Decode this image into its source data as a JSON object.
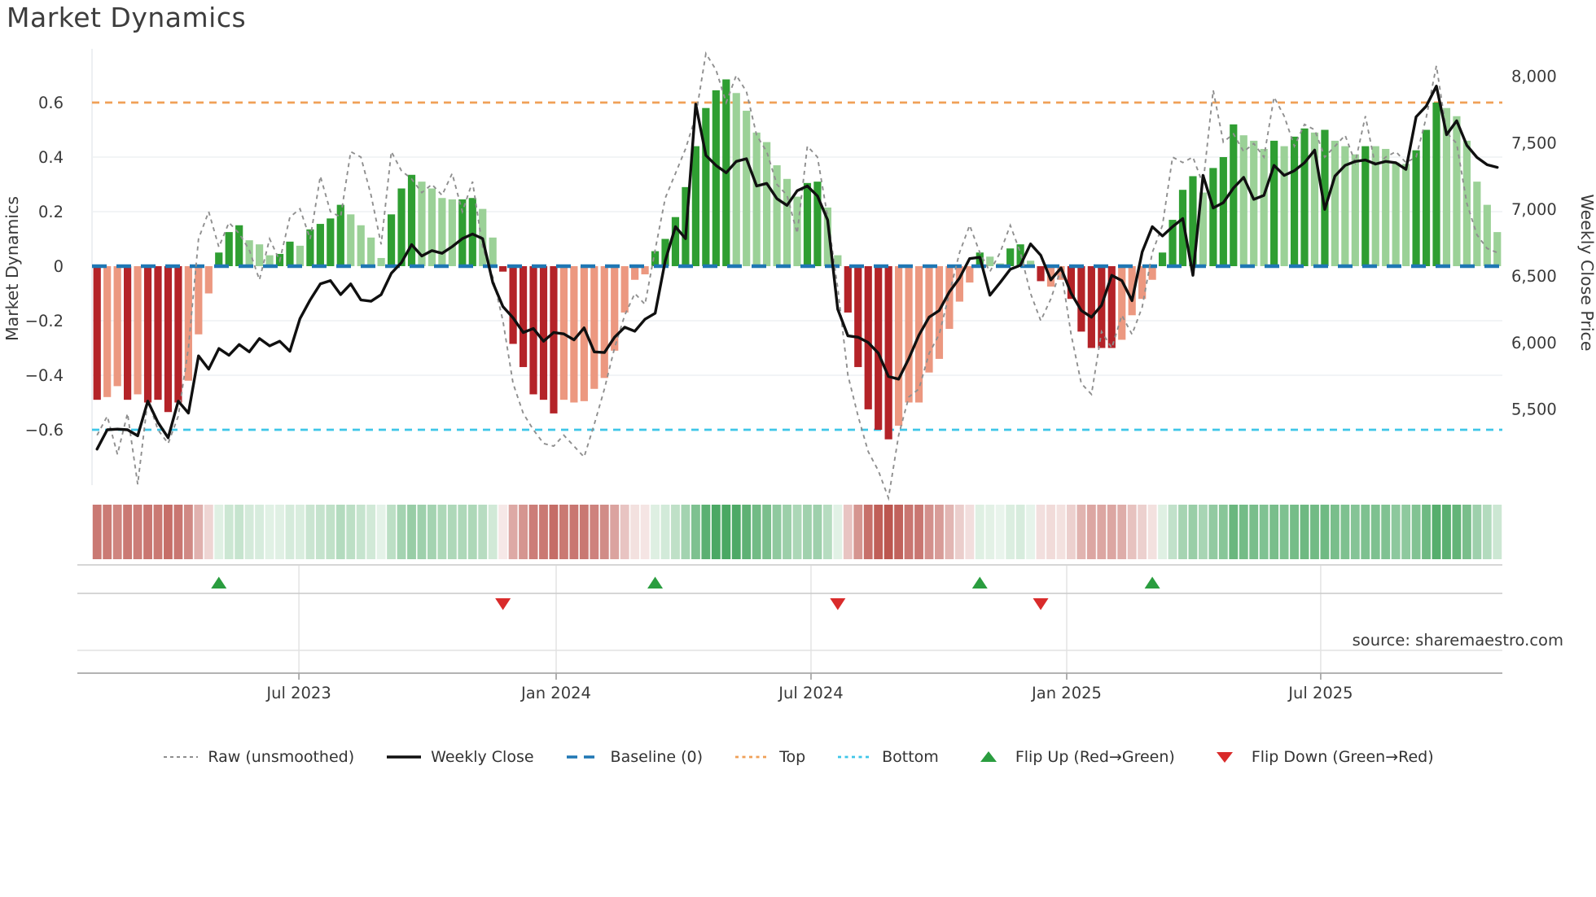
{
  "title": "Market Dynamics",
  "source_note": "source: sharemaestro.com",
  "axes": {
    "left_title": "Market Dynamics",
    "right_title": "Weekly Close Price",
    "left_ticks": {
      "labels": [
        "0.6",
        "0.4",
        "0.2",
        "0",
        "−0.2",
        "−0.4",
        "−0.6"
      ],
      "values": [
        0.6,
        0.4,
        0.2,
        0,
        -0.2,
        -0.4,
        -0.6
      ]
    },
    "right_ticks": {
      "labels": [
        "8,000",
        "7,500",
        "7,000",
        "6,500",
        "6,000",
        "5,500"
      ],
      "values": [
        8000,
        7500,
        7000,
        6500,
        6000,
        5500
      ]
    },
    "x_ticks": {
      "labels": [
        "Jul 2023",
        "Jan 2024",
        "Jul 2024",
        "Jan 2025",
        "Jul 2025"
      ],
      "fractions": [
        0.1467,
        0.3291,
        0.5098,
        0.6911,
        0.8712
      ]
    }
  },
  "legend": [
    {
      "id": "raw",
      "label": "Raw (unsmoothed)"
    },
    {
      "id": "close",
      "label": "Weekly Close"
    },
    {
      "id": "baseline",
      "label": "Baseline (0)"
    },
    {
      "id": "top",
      "label": "Top"
    },
    {
      "id": "bottom",
      "label": "Bottom"
    },
    {
      "id": "flip-up",
      "label": "Flip Up (Red→Green)"
    },
    {
      "id": "flip-down",
      "label": "Flip Down (Green→Red)"
    }
  ],
  "colors": {
    "bar_strong_red": "#b42328",
    "bar_muted_red": "#ec9880",
    "bar_strong_green": "#2f9e32",
    "bar_muted_green": "#9bd197",
    "raw_line": "#8f8f8f",
    "close_line": "#101010",
    "baseline": "#1f77b4",
    "top_line": "#f0a057",
    "bottom_line": "#3fc6e8",
    "flip_up": "#2a9d3f",
    "flip_down": "#d92b2b",
    "heat_red": "#b5443c",
    "heat_green": "#3aa055",
    "grid": "#edf0f3",
    "panel_line": "#c9c9c9",
    "panel_line_light": "#e2e2e2",
    "panel_axis": "#a8a8a8"
  },
  "chart_data": {
    "type": "bar",
    "description": "Weekly market-dynamics oscillator bars (left axis) with raw unsmoothed dashed line, weekly close price line (right axis), baseline/top/bottom reference lines, regime heatmap strip and flip markers",
    "n_weeks": 139,
    "left_axis_range": [
      -0.72,
      0.8
    ],
    "right_axis_range": [
      5300,
      8100
    ],
    "reference_lines": {
      "baseline": 0,
      "top": 0.6,
      "bottom": -0.6
    },
    "flip_up_indices": [
      12,
      55,
      87,
      104
    ],
    "flip_down_indices": [
      40,
      73,
      93
    ],
    "bar_series": {
      "name": "Market Dynamics (smoothed oscillator)",
      "values": [
        -0.49,
        -0.48,
        -0.44,
        -0.49,
        -0.47,
        -0.5,
        -0.49,
        -0.535,
        -0.5,
        -0.42,
        -0.25,
        -0.1,
        0.05,
        0.125,
        0.15,
        0.095,
        0.08,
        0.04,
        0.045,
        0.09,
        0.075,
        0.135,
        0.155,
        0.175,
        0.225,
        0.19,
        0.15,
        0.105,
        0.03,
        0.19,
        0.285,
        0.335,
        0.31,
        0.285,
        0.25,
        0.245,
        0.245,
        0.25,
        0.21,
        0.105,
        -0.02,
        -0.285,
        -0.37,
        -0.47,
        -0.49,
        -0.54,
        -0.49,
        -0.5,
        -0.495,
        -0.45,
        -0.41,
        -0.31,
        -0.17,
        -0.05,
        -0.03,
        0.055,
        0.1,
        0.18,
        0.29,
        0.44,
        0.58,
        0.645,
        0.685,
        0.635,
        0.57,
        0.49,
        0.455,
        0.37,
        0.32,
        0.255,
        0.305,
        0.31,
        0.215,
        0.04,
        -0.17,
        -0.37,
        -0.525,
        -0.6,
        -0.635,
        -0.585,
        -0.5,
        -0.5,
        -0.39,
        -0.34,
        -0.23,
        -0.13,
        -0.06,
        0.05,
        0.035,
        0.01,
        0.065,
        0.08,
        0.02,
        -0.055,
        -0.075,
        -0.05,
        -0.12,
        -0.24,
        -0.3,
        -0.3,
        -0.3,
        -0.27,
        -0.18,
        -0.12,
        -0.05,
        0.05,
        0.17,
        0.28,
        0.33,
        0.27,
        0.36,
        0.4,
        0.52,
        0.48,
        0.46,
        0.43,
        0.46,
        0.44,
        0.475,
        0.505,
        0.49,
        0.5,
        0.46,
        0.44,
        0.41,
        0.44,
        0.44,
        0.43,
        0.38,
        0.375,
        0.425,
        0.5,
        0.6,
        0.58,
        0.55,
        0.46,
        0.31,
        0.225,
        0.125
      ],
      "shade_segments": [
        "dlldlddddlll",
        "dddlllddldd",
        "ddlllldddllllddllddddddl",
        "llllllll",
        "dddddddd",
        "lllllll",
        "dd",
        "ll",
        "ddddd",
        "llllllll",
        "dllddl",
        "dl",
        "ldddddllll",
        "ddddldddll",
        "ldlddldllldlllldddllllll"
      ],
      "shade_legend": {
        "d": "strong/saturated bar",
        "l": "muted/light bar"
      }
    },
    "raw_series": {
      "name": "Raw (unsmoothed)",
      "values": [
        -0.62,
        -0.55,
        -0.69,
        -0.54,
        -0.8,
        -0.49,
        -0.6,
        -0.65,
        -0.55,
        -0.3,
        0.1,
        0.2,
        0.07,
        0.16,
        0.12,
        0.06,
        -0.05,
        0.1,
        0.02,
        0.18,
        0.21,
        0.1,
        0.33,
        0.2,
        0.18,
        0.42,
        0.4,
        0.26,
        0.08,
        0.42,
        0.35,
        0.32,
        0.27,
        0.3,
        0.26,
        0.34,
        0.2,
        0.31,
        0.07,
        -0.04,
        -0.2,
        -0.43,
        -0.54,
        -0.6,
        -0.65,
        -0.66,
        -0.62,
        -0.66,
        -0.7,
        -0.58,
        -0.45,
        -0.3,
        -0.18,
        -0.1,
        -0.14,
        0.06,
        0.25,
        0.34,
        0.43,
        0.55,
        0.78,
        0.72,
        0.6,
        0.7,
        0.64,
        0.48,
        0.42,
        0.3,
        0.26,
        0.12,
        0.44,
        0.4,
        0.18,
        -0.08,
        -0.4,
        -0.55,
        -0.68,
        -0.75,
        -0.85,
        -0.62,
        -0.48,
        -0.45,
        -0.32,
        -0.25,
        -0.1,
        0.05,
        0.15,
        0.05,
        -0.02,
        0.05,
        0.15,
        0.05,
        -0.1,
        -0.2,
        -0.12,
        -0.01,
        -0.25,
        -0.43,
        -0.47,
        -0.24,
        -0.3,
        -0.18,
        -0.25,
        -0.15,
        0.05,
        0.15,
        0.4,
        0.38,
        0.4,
        0.3,
        0.645,
        0.455,
        0.485,
        0.42,
        0.45,
        0.4,
        0.62,
        0.55,
        0.44,
        0.52,
        0.5,
        0.4,
        0.44,
        0.48,
        0.38,
        0.55,
        0.365,
        0.4,
        0.42,
        0.38,
        0.4,
        0.545,
        0.735,
        0.49,
        0.45,
        0.23,
        0.115,
        0.065,
        0.05
      ]
    },
    "close_series": {
      "name": "Weekly Close",
      "axis": "right",
      "values": [
        5200,
        5345,
        5350,
        5345,
        5300,
        5560,
        5400,
        5285,
        5560,
        5470,
        5900,
        5800,
        5955,
        5905,
        5985,
        5930,
        6030,
        5975,
        6010,
        5935,
        6180,
        6320,
        6440,
        6465,
        6360,
        6440,
        6320,
        6310,
        6360,
        6520,
        6600,
        6735,
        6650,
        6690,
        6670,
        6720,
        6780,
        6815,
        6780,
        6450,
        6270,
        6185,
        6075,
        6105,
        6010,
        6075,
        6065,
        6020,
        6110,
        5930,
        5925,
        6040,
        6115,
        6085,
        6175,
        6220,
        6615,
        6870,
        6780,
        7790,
        7405,
        7330,
        7275,
        7360,
        7380,
        7175,
        7195,
        7080,
        7030,
        7140,
        7175,
        7100,
        6920,
        6250,
        6050,
        6040,
        6000,
        5920,
        5745,
        5725,
        5880,
        6055,
        6190,
        6240,
        6380,
        6485,
        6630,
        6640,
        6355,
        6450,
        6550,
        6580,
        6740,
        6655,
        6470,
        6560,
        6370,
        6240,
        6190,
        6280,
        6505,
        6465,
        6315,
        6680,
        6870,
        6800,
        6870,
        6930,
        6505,
        7255,
        7010,
        7050,
        7160,
        7240,
        7075,
        7105,
        7330,
        7255,
        7290,
        7350,
        7445,
        7000,
        7250,
        7330,
        7360,
        7370,
        7340,
        7360,
        7350,
        7300,
        7695,
        7775,
        7925,
        7560,
        7665,
        7480,
        7390,
        7335,
        7315
      ]
    }
  }
}
